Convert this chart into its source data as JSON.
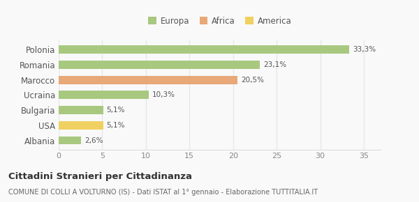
{
  "categories": [
    "Albania",
    "USA",
    "Bulgaria",
    "Ucraina",
    "Marocco",
    "Romania",
    "Polonia"
  ],
  "values": [
    2.6,
    5.1,
    5.1,
    10.3,
    20.5,
    23.1,
    33.3
  ],
  "labels": [
    "2,6%",
    "5,1%",
    "5,1%",
    "10,3%",
    "20,5%",
    "23,1%",
    "33,3%"
  ],
  "colors": [
    "#a8c880",
    "#f0d060",
    "#a8c880",
    "#a8c880",
    "#e8a878",
    "#a8c880",
    "#a8c880"
  ],
  "legend_labels": [
    "Europa",
    "Africa",
    "America"
  ],
  "legend_colors": [
    "#a8c880",
    "#e8a878",
    "#f0d060"
  ],
  "xlim": [
    0,
    37
  ],
  "xticks": [
    0,
    5,
    10,
    15,
    20,
    25,
    30,
    35
  ],
  "title": "Cittadini Stranieri per Cittadinanza",
  "subtitle": "COMUNE DI COLLI A VOLTURNO (IS) - Dati ISTAT al 1° gennaio - Elaborazione TUTTITALIA.IT",
  "background_color": "#f9f9f9",
  "grid_color": "#e8e8e8",
  "bar_height": 0.55
}
